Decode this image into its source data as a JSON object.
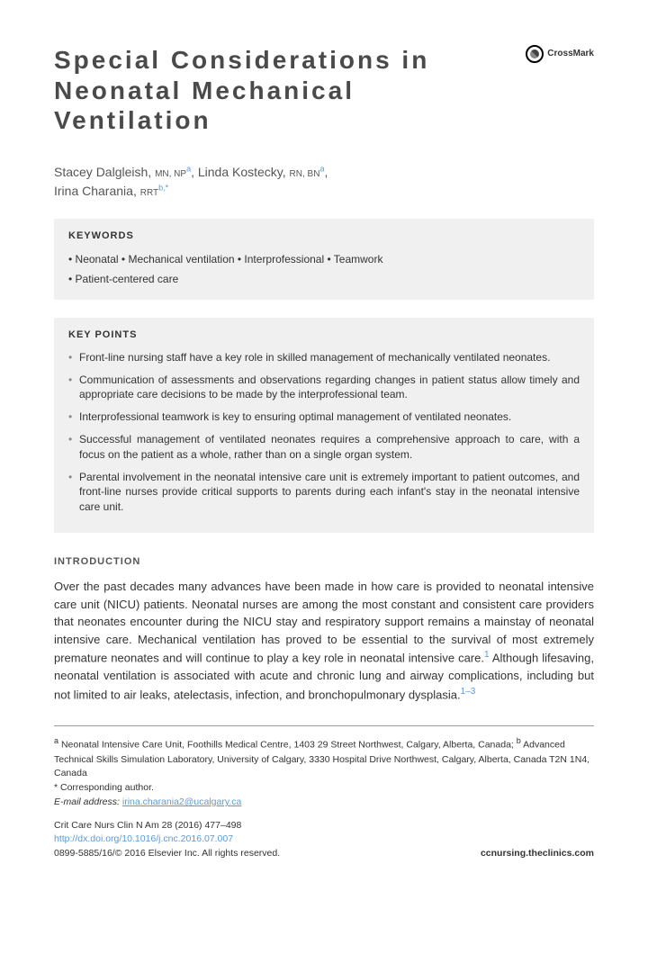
{
  "title": "Special Considerations in Neonatal Mechanical Ventilation",
  "crossmark_label": "CrossMark",
  "authors": [
    {
      "name": "Stacey Dalgleish",
      "cred": "MN, NP",
      "aff": "a"
    },
    {
      "name": "Linda Kostecky",
      "cred": "RN, BN",
      "aff": "a"
    },
    {
      "name": "Irina Charania",
      "cred": "RRT",
      "aff": "b,*"
    }
  ],
  "keywords_heading": "KEYWORDS",
  "keywords": [
    "Neonatal",
    "Mechanical ventilation",
    "Interprofessional",
    "Teamwork",
    "Patient-centered care"
  ],
  "keypoints_heading": "KEY POINTS",
  "keypoints": [
    "Front-line nursing staff have a key role in skilled management of mechanically ventilated neonates.",
    "Communication of assessments and observations regarding changes in patient status allow timely and appropriate care decisions to be made by the interprofessional team.",
    "Interprofessional teamwork is key to ensuring optimal management of ventilated neonates.",
    "Successful management of ventilated neonates requires a comprehensive approach to care, with a focus on the patient as a whole, rather than on a single organ system.",
    "Parental involvement in the neonatal intensive care unit is extremely important to patient outcomes, and front-line nurses provide critical supports to parents during each infant's stay in the neonatal intensive care unit."
  ],
  "intro_heading": "INTRODUCTION",
  "intro_text_1": "Over the past decades many advances have been made in how care is provided to neonatal intensive care unit (NICU) patients. Neonatal nurses are among the most constant and consistent care providers that neonates encounter during the NICU stay and respiratory support remains a mainstay of neonatal intensive care. Mechanical ventilation has proved to be essential to the survival of most extremely premature neonates and will continue to play a key role in neonatal intensive care.",
  "intro_cite_1": "1",
  "intro_text_2": " Although lifesaving, neonatal ventilation is associated with acute and chronic lung and airway complications, including but not limited to air leaks, atelectasis, infection, and bronchopulmonary dysplasia.",
  "intro_cite_2": "1–3",
  "affiliations": {
    "a": "Neonatal Intensive Care Unit, Foothills Medical Centre, 1403 29 Street Northwest, Calgary, Alberta, Canada;",
    "b": "Advanced Technical Skills Simulation Laboratory, University of Calgary, 3330 Hospital Drive Northwest, Calgary, Alberta, Canada T2N 1N4, Canada"
  },
  "corresponding": "* Corresponding author.",
  "email_label": "E-mail address:",
  "email": "irina.charania2@ucalgary.ca",
  "journal_ref": "Crit Care Nurs Clin N Am 28 (2016) 477–498",
  "doi": "http://dx.doi.org/10.1016/j.cnc.2016.07.007",
  "issn_copyright": "0899-5885/16/© 2016 Elsevier Inc. All rights reserved.",
  "journal_site": "ccnursing.theclinics.com"
}
